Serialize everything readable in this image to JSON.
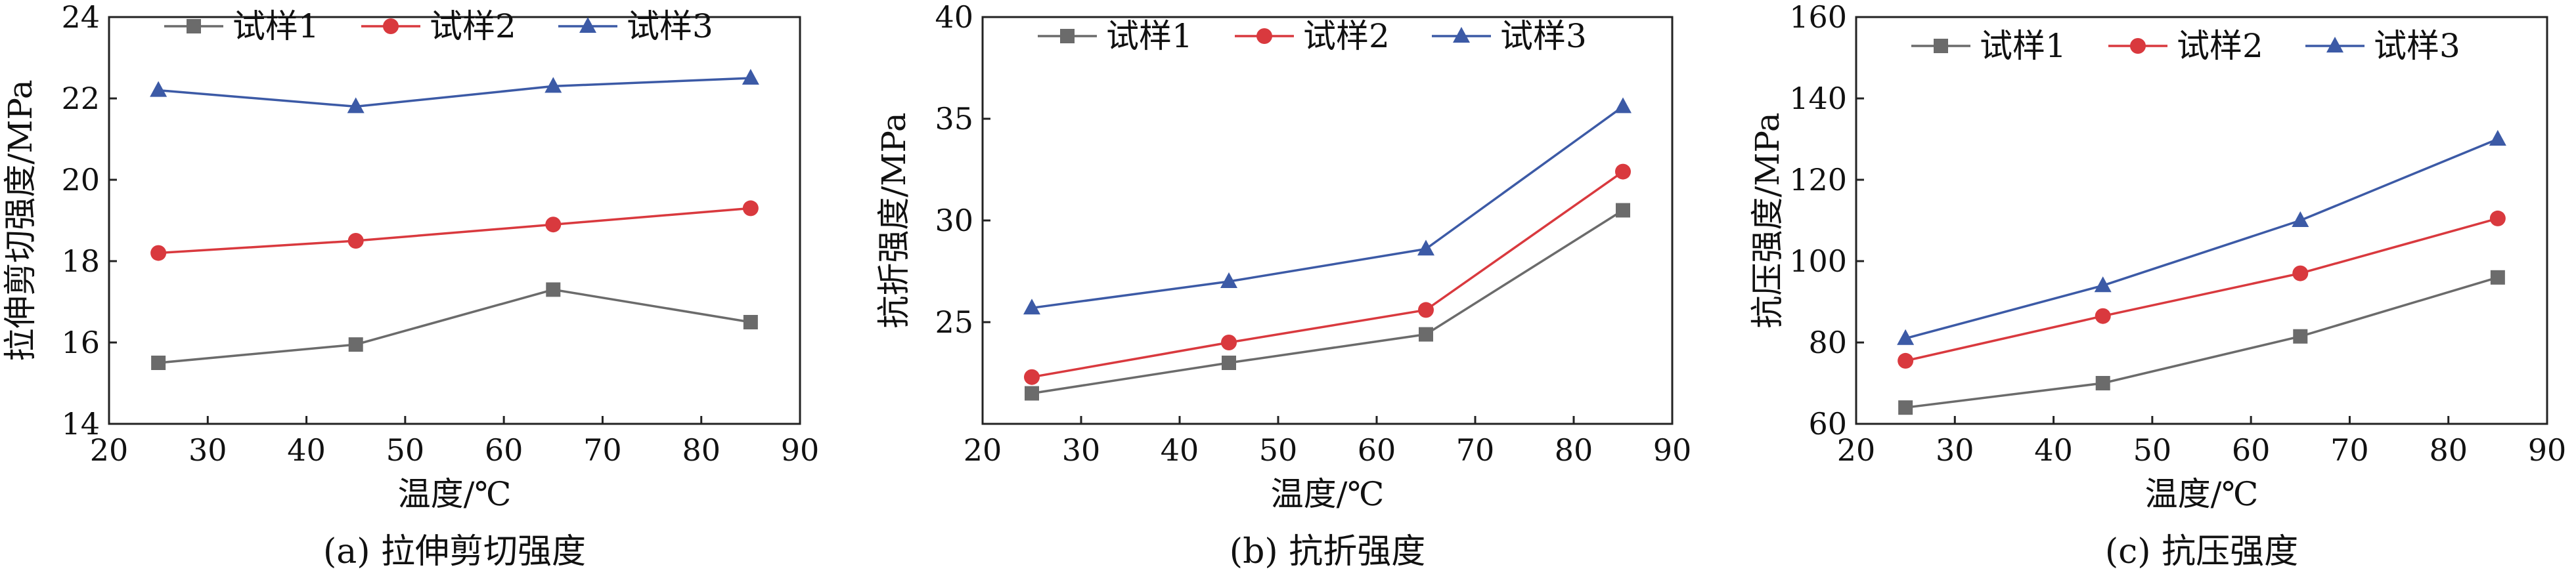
{
  "chart_data": [
    {
      "type": "line",
      "caption": "(a) 拉伸剪切强度",
      "xlabel": "温度/℃",
      "ylabel": "拉伸剪切强度/MPa",
      "xlim": [
        20,
        90
      ],
      "ylim": [
        14,
        24
      ],
      "xticks": [
        "20",
        "30",
        "40",
        "50",
        "60",
        "70",
        "80",
        "90"
      ],
      "yticks": [
        "14",
        "16",
        "18",
        "20",
        "22",
        "24"
      ],
      "x": [
        25,
        45,
        65,
        85
      ],
      "legend_position": "top",
      "series": [
        {
          "name": "试样1",
          "values": [
            15.5,
            15.95,
            17.3,
            16.5
          ],
          "color": "#6b6b6b",
          "marker": "square"
        },
        {
          "name": "试样2",
          "values": [
            18.2,
            18.5,
            18.9,
            19.3
          ],
          "color": "#d9393e",
          "marker": "circle"
        },
        {
          "name": "试样3",
          "values": [
            22.2,
            21.8,
            22.3,
            22.5
          ],
          "color": "#3c5aa6",
          "marker": "triangle"
        }
      ]
    },
    {
      "type": "line",
      "caption": "(b) 抗折强度",
      "xlabel": "温度/℃",
      "ylabel": "抗折强度/MPa",
      "xlim": [
        20,
        90
      ],
      "ylim": [
        20,
        40
      ],
      "xticks": [
        "20",
        "30",
        "40",
        "50",
        "60",
        "70",
        "80",
        "90"
      ],
      "yticks": [
        "25",
        "30",
        "35",
        "40"
      ],
      "x": [
        25,
        45,
        65,
        85
      ],
      "legend_position": "top",
      "series": [
        {
          "name": "试样1",
          "values": [
            21.5,
            23.0,
            24.4,
            30.5
          ],
          "color": "#6b6b6b",
          "marker": "square"
        },
        {
          "name": "试样2",
          "values": [
            22.3,
            24.0,
            25.6,
            32.4
          ],
          "color": "#d9393e",
          "marker": "circle"
        },
        {
          "name": "试样3",
          "values": [
            25.7,
            27.0,
            28.6,
            35.6
          ],
          "color": "#3c5aa6",
          "marker": "triangle"
        }
      ]
    },
    {
      "type": "line",
      "caption": "(c) 抗压强度",
      "xlabel": "温度/℃",
      "ylabel": "抗压强度/MPa",
      "xlim": [
        20,
        90
      ],
      "ylim": [
        60,
        160
      ],
      "xticks": [
        "20",
        "30",
        "40",
        "50",
        "60",
        "70",
        "80",
        "90"
      ],
      "yticks": [
        "60",
        "80",
        "100",
        "120",
        "140",
        "160"
      ],
      "x": [
        25,
        45,
        65,
        85
      ],
      "legend_position": "top",
      "series": [
        {
          "name": "试样1",
          "values": [
            64,
            70,
            81.5,
            96
          ],
          "color": "#6b6b6b",
          "marker": "square"
        },
        {
          "name": "试样2",
          "values": [
            75.5,
            86.5,
            97,
            110.5
          ],
          "color": "#d9393e",
          "marker": "circle"
        },
        {
          "name": "试样3",
          "values": [
            81,
            94,
            110,
            130
          ],
          "color": "#3c5aa6",
          "marker": "triangle"
        }
      ]
    }
  ]
}
